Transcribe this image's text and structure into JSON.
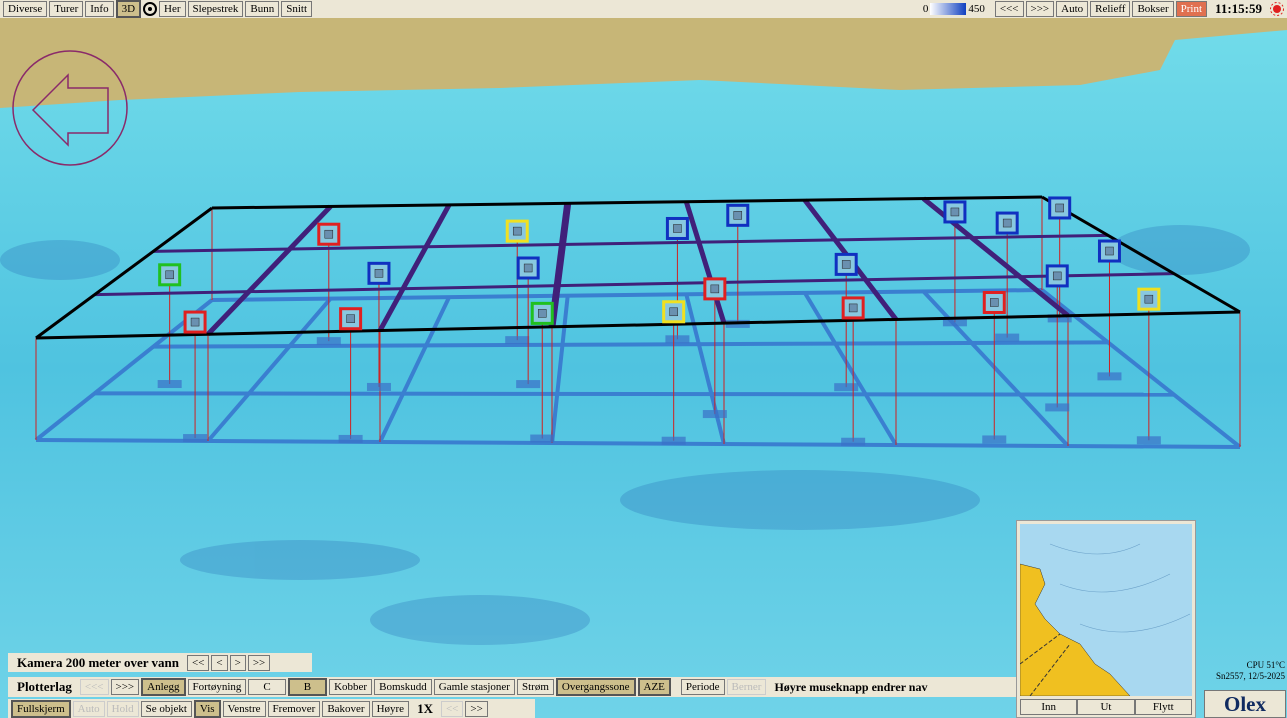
{
  "top_toolbar": {
    "left": [
      "Diverse",
      "Turer",
      "Info",
      "3D",
      "Her",
      "Slepestrek",
      "Bunn",
      "Snitt"
    ],
    "depth_min": "0",
    "depth_max": "450",
    "right": [
      "<<<",
      ">>>",
      "Auto",
      "Relieff",
      "Bokser",
      "Print"
    ],
    "clock": "11:15:59"
  },
  "camera": {
    "label": "Kamera 200 meter over vann",
    "buttons": [
      "<<",
      "<",
      ">",
      ">>"
    ]
  },
  "plotterlag": {
    "label": "Plotterlag",
    "buttons": [
      "<<<",
      ">>>",
      "Anlegg",
      "Fortøyning",
      "C",
      "B",
      "Kobber",
      "Bomskudd",
      "Gamle stasjoner",
      "Strøm",
      "Overgangssone",
      "AZE",
      "Periode",
      "Berner"
    ],
    "hint": "Høyre museknapp endrer nav"
  },
  "bottom_bar": {
    "buttons": [
      "Fullskjerm",
      "Auto",
      "Hold",
      "Se objekt",
      "Vis",
      "Venstre",
      "Fremover",
      "Bakover",
      "Høyre"
    ],
    "speed": "1X",
    "speed_buttons": [
      "<<",
      ">>"
    ]
  },
  "minimap": {
    "buttons": [
      "Inn",
      "Ut",
      "Flytt"
    ]
  },
  "status": {
    "cpu": "CPU 51°C",
    "serial": "Sn2557, 12/5-2025"
  },
  "logo": "Olex"
}
